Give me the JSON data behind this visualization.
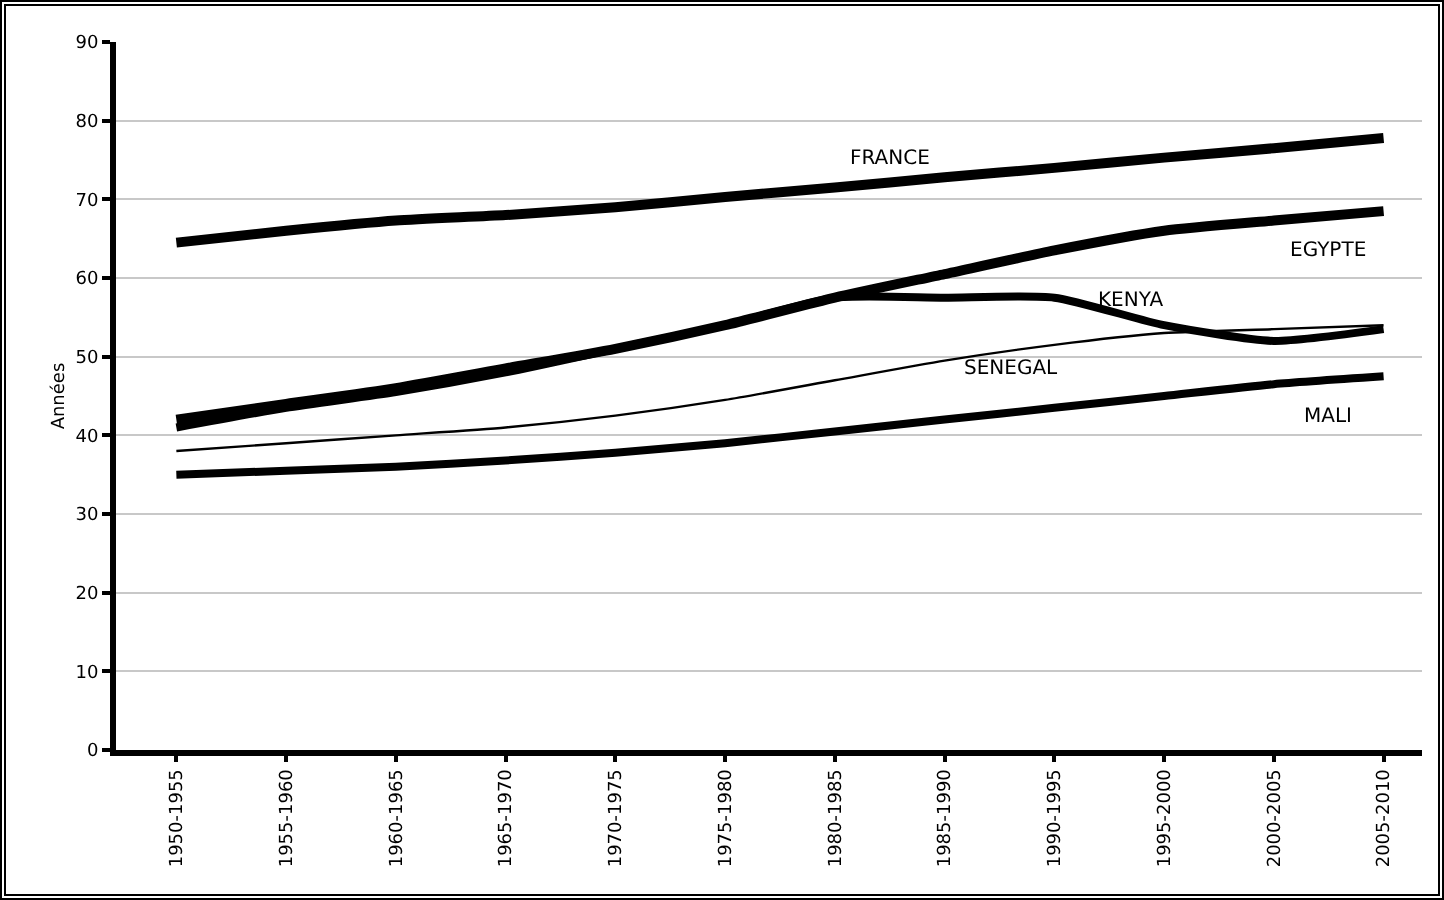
{
  "chart_data": {
    "type": "line",
    "ylabel": "Années",
    "categories": [
      "1950-1955",
      "1955-1960",
      "1960-1965",
      "1965-1970",
      "1970-1975",
      "1975-1980",
      "1980-1985",
      "1985-1990",
      "1990-1995",
      "1995-2000",
      "2000-2005",
      "2005-2010"
    ],
    "series": [
      {
        "name": "FRANCE",
        "color": "#000000",
        "values": [
          64.5,
          66,
          67.3,
          68,
          69,
          70.3,
          71.5,
          72.8,
          74,
          75.3,
          76.5,
          77.8
        ]
      },
      {
        "name": "EGYPTE",
        "color": "#000000",
        "values": [
          42,
          44,
          46,
          48.5,
          51,
          54,
          57.5,
          60.5,
          63.5,
          66,
          67.3,
          68.5
        ]
      },
      {
        "name": "KENYA",
        "color": "#000000",
        "values": [
          41,
          43.5,
          45.5,
          48,
          51,
          54,
          57.5,
          57.5,
          57.5,
          54,
          52,
          53.5
        ]
      },
      {
        "name": "SENEGAL",
        "color": "#000000",
        "values": [
          38,
          39,
          40,
          41,
          42.5,
          44.5,
          47,
          49.5,
          51.5,
          53,
          53.5,
          54
        ]
      },
      {
        "name": "MALI",
        "color": "#000000",
        "values": [
          35,
          35.5,
          36,
          36.8,
          37.8,
          39,
          40.5,
          42,
          43.5,
          45,
          46.5,
          47.5
        ]
      }
    ],
    "ylim": [
      0,
      90
    ],
    "yticks": [
      0,
      10,
      20,
      30,
      40,
      50,
      60,
      70,
      80,
      90
    ],
    "grid": "y",
    "legend": false,
    "marker": "none",
    "line_style": "solid"
  }
}
